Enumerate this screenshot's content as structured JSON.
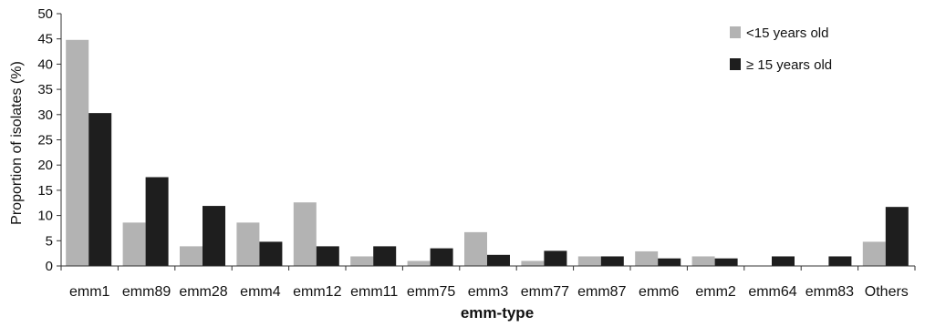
{
  "chart_data": {
    "type": "bar",
    "xlabel": "emm-type",
    "ylabel": "Proportion of isolates (%)",
    "ylim": [
      0,
      50
    ],
    "yticks": [
      0,
      5,
      10,
      15,
      20,
      25,
      30,
      35,
      40,
      45,
      50
    ],
    "grid": false,
    "legend_position": "top-right",
    "categories": [
      "emm1",
      "emm89",
      "emm28",
      "emm4",
      "emm12",
      "emm11",
      "emm75",
      "emm3",
      "emm77",
      "emm87",
      "emm6",
      "emm2",
      "emm64",
      "emm83",
      "Others"
    ],
    "series": [
      {
        "name": "<15 years old",
        "color": "#b3b3b3",
        "values": [
          44.8,
          8.6,
          3.9,
          8.6,
          12.6,
          1.9,
          1.0,
          6.7,
          1.0,
          1.9,
          2.9,
          1.9,
          0,
          0,
          4.8
        ]
      },
      {
        "name": "≥ 15 years old",
        "color": "#1e1e1e",
        "values": [
          30.3,
          17.6,
          11.9,
          4.8,
          3.9,
          3.9,
          3.5,
          2.2,
          3.0,
          1.9,
          1.5,
          1.5,
          1.9,
          1.9,
          11.7
        ]
      }
    ]
  }
}
